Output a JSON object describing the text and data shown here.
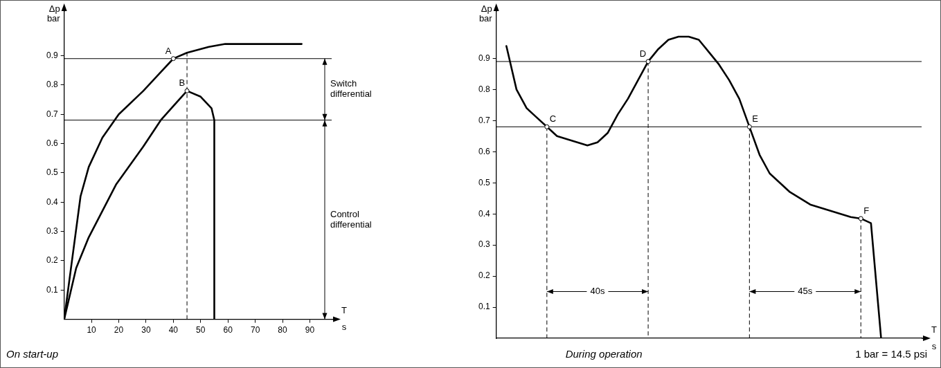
{
  "chart_data": [
    {
      "type": "line",
      "xlabel": "T s",
      "ylabel": "Δp bar",
      "xlim": [
        0,
        98
      ],
      "ylim": [
        0,
        1.05
      ],
      "xticks": [
        10,
        20,
        30,
        40,
        50,
        60,
        70,
        80,
        90
      ],
      "yticks": [
        0.1,
        0.2,
        0.3,
        0.4,
        0.5,
        0.6,
        0.7,
        0.8,
        0.9
      ],
      "series": [
        {
          "color": "#000000",
          "x": [
            0,
            3,
            6,
            9,
            14,
            20,
            29,
            35,
            40,
            45,
            53,
            59,
            87
          ],
          "values": [
            0,
            0.21,
            0.42,
            0.52,
            0.62,
            0.7,
            0.78,
            0.84,
            0.89,
            0.91,
            0.93,
            0.94,
            0.94
          ]
        },
        {
          "color": "#000000",
          "x": [
            0,
            4.4,
            9,
            19,
            29,
            35.4,
            45,
            50,
            54,
            55,
            55
          ],
          "values": [
            0,
            0.175,
            0.28,
            0.46,
            0.59,
            0.68,
            0.78,
            0.76,
            0.72,
            0.68,
            0
          ]
        }
      ],
      "ref_lines": [
        {
          "axis": "y",
          "value": 0.89,
          "color": "#000000"
        },
        {
          "axis": "y",
          "value": 0.68,
          "color": "#000000"
        },
        {
          "axis": "x",
          "value": 45,
          "color": "#000000",
          "line_style": "dashed"
        }
      ],
      "annotations": [
        {
          "text": "A",
          "x": 40,
          "y": 0.89
        },
        {
          "text": "B",
          "x": 45,
          "y": 0.78
        },
        "Switch differential",
        "Control differential",
        "On start-up"
      ]
    },
    {
      "type": "line",
      "xlabel": "T s",
      "ylabel": "Δp bar",
      "categories": [
        null,
        null,
        null,
        null,
        null,
        null,
        null,
        null,
        null,
        null,
        null,
        null,
        null,
        null,
        null,
        null,
        null,
        null,
        null,
        null,
        null,
        null,
        null,
        null,
        null,
        null,
        null,
        null,
        null,
        null,
        null,
        null,
        null,
        null,
        null,
        null,
        null,
        null,
        null,
        null,
        null,
        null,
        null
      ],
      "ylim": [
        0,
        1.05
      ],
      "yticks": [
        0.1,
        0.2,
        0.3,
        0.4,
        0.5,
        0.6,
        0.7,
        0.8,
        0.9
      ],
      "tick_labels": "y",
      "series": [
        {
          "color": "#000000",
          "values": [
            null,
            0.94,
            0.8,
            0.74,
            0.71,
            0.68,
            0.65,
            0.64,
            0.63,
            0.62,
            0.63,
            0.66,
            0.72,
            0.77,
            0.83,
            0.89,
            0.93,
            0.96,
            0.97,
            0.97,
            0.96,
            0.92,
            0.88,
            0.83,
            0.77,
            0.68,
            0.59,
            0.53,
            0.5,
            0.47,
            0.45,
            0.43,
            0.42,
            0.41,
            0.4,
            0.39,
            0.385,
            0.37,
            0,
            null,
            null,
            null,
            null
          ]
        }
      ],
      "ref_lines": [
        {
          "axis": "y",
          "value": 0.89,
          "color": "#000000"
        },
        {
          "axis": "y",
          "value": 0.68,
          "color": "#000000"
        }
      ],
      "annotations": [
        {
          "text": "C",
          "y": 0.68
        },
        {
          "text": "D",
          "y": 0.89
        },
        {
          "text": "E",
          "y": 0.68
        },
        {
          "text": "F",
          "y": 0.385
        },
        "40s",
        "45s",
        "During operation",
        "1 bar = 14.5 psi"
      ]
    }
  ]
}
